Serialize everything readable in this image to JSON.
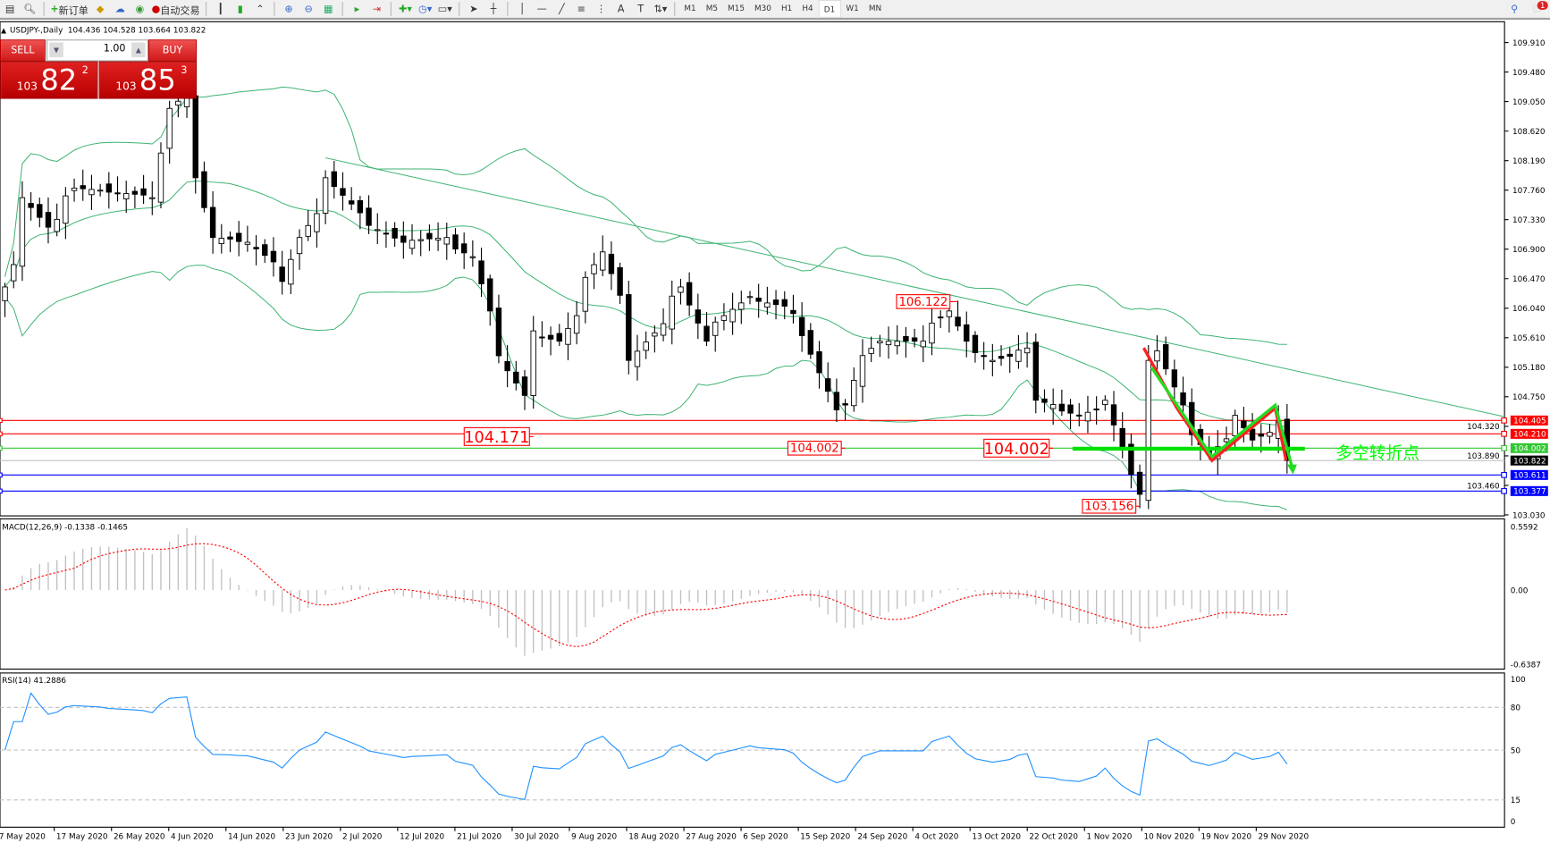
{
  "toolbar": {
    "new_order": "新订单",
    "auto_trading": "自动交易",
    "timeframes": [
      "M1",
      "M5",
      "M15",
      "M30",
      "H1",
      "H4",
      "D1",
      "W1",
      "MN"
    ],
    "active_timeframe": "D1",
    "notification_count": "1",
    "text_tool": "A"
  },
  "chart_header": {
    "symbol": "USDJPY-,Daily",
    "ohlc": "104.436 104.528 103.664 103.822"
  },
  "trade_panel": {
    "sell_label": "SELL",
    "buy_label": "BUY",
    "lot": "1.00",
    "sell_price": {
      "prefix": "103",
      "big": "82",
      "sup": "2"
    },
    "buy_price": {
      "prefix": "103",
      "big": "85",
      "sup": "3"
    }
  },
  "chart_data": {
    "type": "candlestick",
    "symbol": "USDJPY",
    "timeframe": "Daily",
    "ylim": [
      103.03,
      109.91
    ],
    "price_ticks": [
      "109.910",
      "109.480",
      "109.050",
      "108.620",
      "108.190",
      "107.760",
      "107.330",
      "106.900",
      "106.470",
      "106.040",
      "105.610",
      "105.180",
      "104.750",
      "104.320",
      "103.890",
      "103.460",
      "103.030"
    ],
    "date_labels": [
      "7 May 2020",
      "17 May 2020",
      "26 May 2020",
      "4 Jun 2020",
      "14 Jun 2020",
      "23 Jun 2020",
      "2 Jul 2020",
      "12 Jul 2020",
      "21 Jul 2020",
      "30 Jul 2020",
      "9 Aug 2020",
      "18 Aug 2020",
      "27 Aug 2020",
      "6 Sep 2020",
      "15 Sep 2020",
      "24 Sep 2020",
      "4 Oct 2020",
      "13 Oct 2020",
      "22 Oct 2020",
      "1 Nov 2020",
      "10 Nov 2020",
      "19 Nov 2020",
      "29 Nov 2020"
    ],
    "close_path": [
      {
        "date": "2020-05-07",
        "close": 106.35
      },
      {
        "date": "2020-05-11",
        "close": 107.65
      },
      {
        "date": "2020-05-14",
        "close": 107.22
      },
      {
        "date": "2020-05-19",
        "close": 107.79
      },
      {
        "date": "2020-05-28",
        "close": 107.7
      },
      {
        "date": "2020-06-01",
        "close": 107.65
      },
      {
        "date": "2020-06-03",
        "close": 108.95
      },
      {
        "date": "2020-06-05",
        "close": 109.16
      },
      {
        "date": "2020-06-08",
        "close": 107.94
      },
      {
        "date": "2020-06-10",
        "close": 107.07
      },
      {
        "date": "2020-06-16",
        "close": 107.0
      },
      {
        "date": "2020-06-22",
        "close": 106.43
      },
      {
        "date": "2020-06-24",
        "close": 107.07
      },
      {
        "date": "2020-06-29",
        "close": 107.94
      },
      {
        "date": "2020-07-03",
        "close": 107.43
      },
      {
        "date": "2020-07-10",
        "close": 107.0
      },
      {
        "date": "2020-07-17",
        "close": 107.07
      },
      {
        "date": "2020-07-22",
        "close": 106.79
      },
      {
        "date": "2020-07-24",
        "close": 106.0
      },
      {
        "date": "2020-07-28",
        "close": 105.13
      },
      {
        "date": "2020-07-30",
        "close": 104.77
      },
      {
        "date": "2020-07-31",
        "close": 105.71
      },
      {
        "date": "2020-08-05",
        "close": 105.56
      },
      {
        "date": "2020-08-12",
        "close": 106.86
      },
      {
        "date": "2020-08-17",
        "close": 105.28
      },
      {
        "date": "2020-08-25",
        "close": 106.35
      },
      {
        "date": "2020-08-28",
        "close": 105.56
      },
      {
        "date": "2020-09-04",
        "close": 106.21
      },
      {
        "date": "2020-09-10",
        "close": 106.07
      },
      {
        "date": "2020-09-14",
        "close": 105.64
      },
      {
        "date": "2020-09-18",
        "close": 104.56
      },
      {
        "date": "2020-09-21",
        "close": 104.63
      },
      {
        "date": "2020-09-23",
        "close": 105.35
      },
      {
        "date": "2020-09-25",
        "close": 105.56
      },
      {
        "date": "2020-10-02",
        "close": 105.56
      },
      {
        "date": "2020-10-07",
        "close": 106.0
      },
      {
        "date": "2020-10-09",
        "close": 105.56
      },
      {
        "date": "2020-10-14",
        "close": 105.28
      },
      {
        "date": "2020-10-20",
        "close": 105.46
      },
      {
        "date": "2020-10-21",
        "close": 104.7
      },
      {
        "date": "2020-10-28",
        "close": 104.48
      },
      {
        "date": "2020-11-02",
        "close": 104.7
      },
      {
        "date": "2020-11-05",
        "close": 103.62
      },
      {
        "date": "2020-11-06",
        "close": 103.33
      },
      {
        "date": "2020-11-09",
        "close": 105.28
      },
      {
        "date": "2020-11-10",
        "close": 105.42
      },
      {
        "date": "2020-11-13",
        "close": 104.63
      },
      {
        "date": "2020-11-18",
        "close": 103.91
      },
      {
        "date": "2020-11-23",
        "close": 104.48
      },
      {
        "date": "2020-11-25",
        "close": 104.12
      },
      {
        "date": "2020-11-30",
        "close": 104.4
      },
      {
        "date": "2020-12-01",
        "close": 103.822
      }
    ],
    "indicators": [
      "Bollinger Bands (green)",
      "Trendline (green)"
    ],
    "level_lines": [
      {
        "price": "104.405",
        "color": "#ff0000"
      },
      {
        "price": "104.210",
        "color": "#ff0000"
      },
      {
        "price": "104.002",
        "color": "#32c832"
      },
      {
        "price": "103.822",
        "color": "#000000"
      },
      {
        "price": "103.611",
        "color": "#0000ff"
      },
      {
        "price": "103.377",
        "color": "#0000ff"
      }
    ],
    "price_callouts": [
      {
        "text": "106.122",
        "price": 106.122,
        "date": "2020-10-08"
      },
      {
        "text": "104.171",
        "price": 104.171,
        "date": "2020-07-31"
      },
      {
        "text": "104.002",
        "price": 104.002,
        "date": "2020-09-21"
      },
      {
        "text": "104.002",
        "price": 104.002,
        "date": "2020-10-23"
      },
      {
        "text": "103.156",
        "price": 103.156,
        "date": "2020-11-06"
      }
    ],
    "annotation_text": "多空转折点",
    "annotation_color": "#00ff00",
    "trendline": {
      "start": {
        "date": "2020-06-29",
        "price": 108.23
      },
      "end": {
        "date": "2021-01-06",
        "price": 104.46
      },
      "color": "#3cb371"
    }
  },
  "macd": {
    "label": "MACD(12,26,9) -0.1338 -0.1465",
    "ticks": [
      "0.5592",
      "0.00",
      "-0.6387"
    ]
  },
  "rsi": {
    "label": "RSI(14) 41.2886",
    "ticks": [
      "100",
      "80",
      "50",
      "15",
      "0"
    ]
  }
}
